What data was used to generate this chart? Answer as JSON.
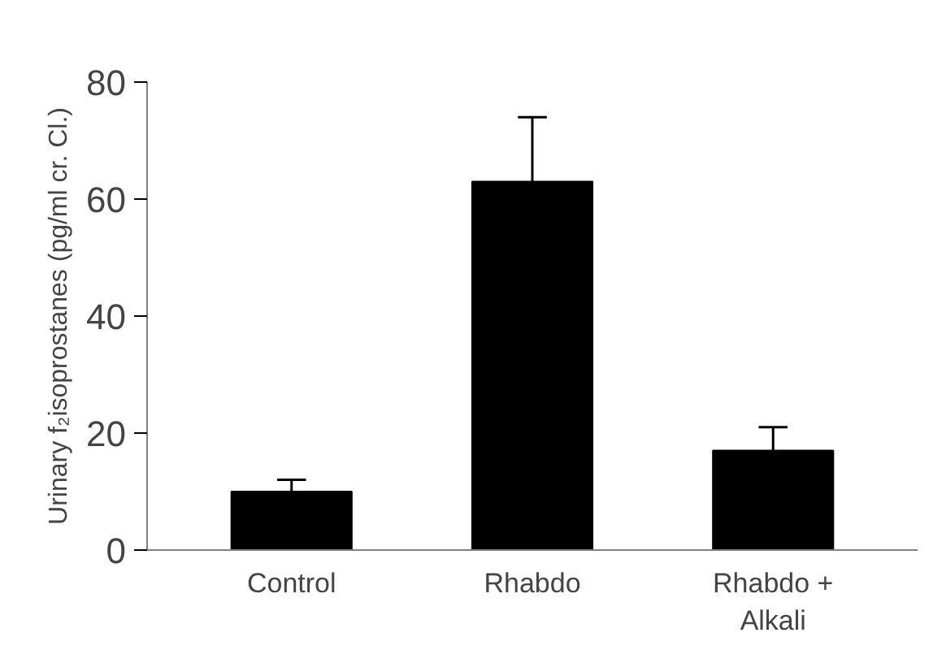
{
  "chart_data": {
    "type": "bar",
    "ylabel": "Urinary f₂isoprostanes (pg/ml cr. Cl.)",
    "categories": [
      "Control",
      "Rhabdo",
      "Rhabdo + Alkali"
    ],
    "values": [
      10,
      63,
      17
    ],
    "errors": [
      [
        10,
        12
      ],
      [
        63,
        74
      ],
      [
        17,
        21
      ]
    ],
    "color": "#000000",
    "ylim": [
      0,
      80
    ],
    "yticks": [
      0,
      20,
      40,
      60,
      80
    ],
    "grid": false
  }
}
